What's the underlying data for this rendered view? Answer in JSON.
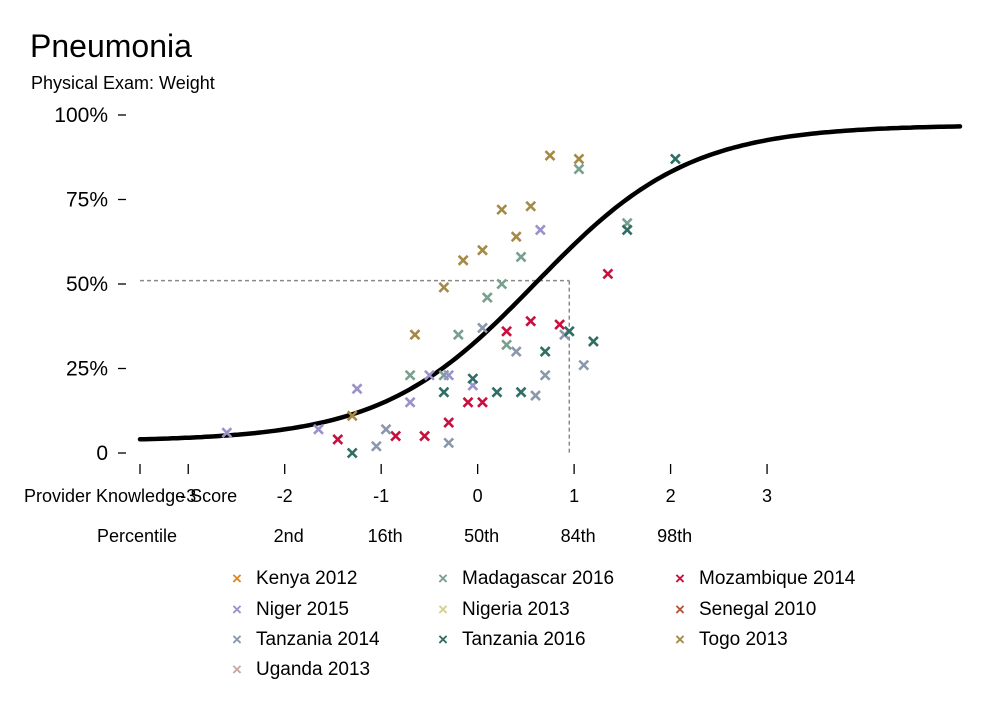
{
  "chart_data": {
    "type": "scatter",
    "title": "Pneumonia",
    "subtitle": "Physical Exam: Weight",
    "x_axis_label": "Provider Knowledge Score",
    "x_ticks": [
      "-3",
      "-2",
      "-1",
      "0",
      "1",
      "2",
      "3"
    ],
    "x_tick_values": [
      -3,
      -2,
      -1,
      0,
      1,
      2,
      3
    ],
    "xlim": [
      -3.5,
      5.0
    ],
    "percentile_label": "Percentile",
    "percentile_ticks": [
      {
        "x": -2,
        "label": "2nd"
      },
      {
        "x": -1,
        "label": "16th"
      },
      {
        "x": 0,
        "label": "50th"
      },
      {
        "x": 1,
        "label": "84th"
      },
      {
        "x": 2,
        "label": "98th"
      }
    ],
    "y_ticks": [
      "0",
      "25%",
      "50%",
      "75%",
      "100%"
    ],
    "y_tick_values": [
      0,
      0.25,
      0.5,
      0.75,
      1.0
    ],
    "ylim": [
      0,
      1
    ],
    "reference": {
      "x": 0.95,
      "y": 0.51
    },
    "curve": {
      "type": "logistic",
      "center": 0.6,
      "scale": 0.8,
      "lower": 0.035,
      "upper": 0.97
    },
    "legend_position": "bottom",
    "series": [
      {
        "name": "Kenya 2012",
        "color": "#e08a1e",
        "points": []
      },
      {
        "name": "Madagascar 2016",
        "color": "#79a08e",
        "points": [
          [
            -0.7,
            0.23
          ],
          [
            -0.35,
            0.23
          ],
          [
            -0.2,
            0.35
          ],
          [
            0.1,
            0.46
          ],
          [
            0.25,
            0.5
          ],
          [
            0.45,
            0.58
          ],
          [
            0.3,
            0.32
          ],
          [
            1.05,
            0.84
          ],
          [
            1.55,
            0.68
          ]
        ]
      },
      {
        "name": "Mozambique 2014",
        "color": "#c8103e",
        "points": [
          [
            -1.45,
            0.04
          ],
          [
            -0.85,
            0.05
          ],
          [
            -0.55,
            0.05
          ],
          [
            -0.3,
            0.09
          ],
          [
            -0.1,
            0.15
          ],
          [
            0.05,
            0.15
          ],
          [
            0.3,
            0.36
          ],
          [
            0.55,
            0.39
          ],
          [
            0.85,
            0.38
          ],
          [
            1.35,
            0.53
          ]
        ]
      },
      {
        "name": "Niger 2015",
        "color": "#9a92cb",
        "points": [
          [
            -2.6,
            0.06
          ],
          [
            -1.65,
            0.07
          ],
          [
            -1.25,
            0.19
          ],
          [
            -0.7,
            0.15
          ],
          [
            -0.5,
            0.23
          ],
          [
            -0.3,
            0.23
          ],
          [
            -0.05,
            0.2
          ],
          [
            0.65,
            0.66
          ]
        ]
      },
      {
        "name": "Nigeria 2013",
        "color": "#d6cf8e",
        "points": []
      },
      {
        "name": "Senegal 2010",
        "color": "#b5533c",
        "points": []
      },
      {
        "name": "Tanzania 2014",
        "color": "#8a98ab",
        "points": [
          [
            -0.95,
            0.07
          ],
          [
            -1.05,
            0.02
          ],
          [
            -0.3,
            0.03
          ],
          [
            0.05,
            0.37
          ],
          [
            0.4,
            0.3
          ],
          [
            0.6,
            0.17
          ],
          [
            0.7,
            0.23
          ],
          [
            0.9,
            0.35
          ],
          [
            1.1,
            0.26
          ]
        ]
      },
      {
        "name": "Tanzania 2016",
        "color": "#2f6e63",
        "points": [
          [
            -1.3,
            0.0
          ],
          [
            -0.35,
            0.18
          ],
          [
            -0.05,
            0.22
          ],
          [
            0.2,
            0.18
          ],
          [
            0.45,
            0.18
          ],
          [
            0.7,
            0.3
          ],
          [
            0.95,
            0.36
          ],
          [
            1.2,
            0.33
          ],
          [
            1.55,
            0.66
          ],
          [
            2.05,
            0.87
          ]
        ]
      },
      {
        "name": "Togo 2013",
        "color": "#a48a45",
        "points": [
          [
            -1.3,
            0.11
          ],
          [
            -0.65,
            0.35
          ],
          [
            -0.35,
            0.49
          ],
          [
            -0.15,
            0.57
          ],
          [
            0.05,
            0.6
          ],
          [
            0.25,
            0.72
          ],
          [
            0.4,
            0.64
          ],
          [
            0.55,
            0.73
          ],
          [
            0.75,
            0.88
          ],
          [
            1.05,
            0.87
          ]
        ]
      },
      {
        "name": "Uganda 2013",
        "color": "#c7aaa0",
        "points": []
      }
    ]
  }
}
